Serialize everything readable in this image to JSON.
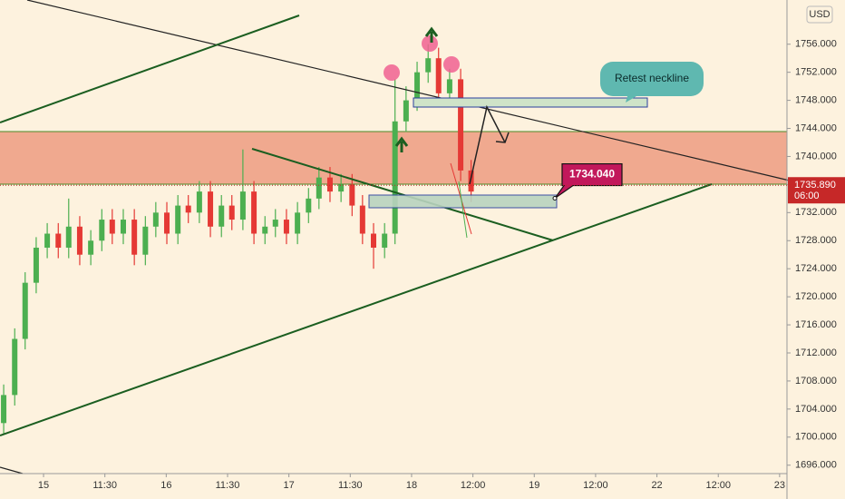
{
  "chart_data": {
    "type": "candlestick",
    "currency": "USD",
    "x": [
      -0.65,
      -0.47,
      -0.3,
      -0.12,
      0.06,
      0.24,
      0.41,
      0.59,
      0.77,
      0.95,
      1.12,
      1.3,
      1.48,
      1.66,
      1.83,
      2.01,
      2.19,
      2.36,
      2.54,
      2.72,
      2.9,
      3.07,
      3.25,
      3.43,
      3.61,
      3.78,
      3.96,
      4.14,
      4.32,
      4.49,
      4.67,
      4.85,
      5.03,
      5.2,
      5.38,
      5.56,
      5.73,
      5.91,
      6.09,
      6.27,
      6.44,
      6.62,
      6.8,
      6.97
    ],
    "open": [
      1702,
      1706,
      1714,
      1722,
      1727,
      1729,
      1727,
      1730,
      1726,
      1728,
      1731,
      1729,
      1731,
      1726,
      1730,
      1732,
      1729,
      1733,
      1732,
      1735,
      1730,
      1733,
      1731,
      1735,
      1729,
      1730,
      1731,
      1729,
      1732,
      1734,
      1737,
      1735,
      1736,
      1733,
      1729,
      1727,
      1729,
      1745,
      1748,
      1752,
      1754,
      1749,
      1751,
      1738
    ],
    "high": [
      1707.5,
      1715.5,
      1723.5,
      1728.5,
      1730.5,
      1730.5,
      1734,
      1731.5,
      1729.5,
      1732.5,
      1732.5,
      1732.5,
      1732.5,
      1731.5,
      1733.5,
      1733.5,
      1734.5,
      1734.5,
      1736.5,
      1736.5,
      1734.5,
      1734.5,
      1741,
      1736.5,
      1731.5,
      1732.5,
      1732.5,
      1733.5,
      1735.5,
      1738.5,
      1738.5,
      1737.5,
      1737.5,
      1734.5,
      1730.5,
      1730.5,
      1751,
      1750,
      1753.5,
      1756,
      1755.5,
      1752.5,
      1752.5,
      1739.5
    ],
    "low": [
      1700.5,
      1704.5,
      1712.5,
      1720.5,
      1725.5,
      1725.5,
      1725.5,
      1724.5,
      1724.5,
      1726.5,
      1727.5,
      1727.5,
      1724.5,
      1724.5,
      1728.5,
      1727.5,
      1727.5,
      1730.5,
      1730.5,
      1728.5,
      1728.5,
      1729.5,
      1729.5,
      1727.5,
      1727.5,
      1728.5,
      1727.5,
      1727.5,
      1730.5,
      1732.5,
      1733.5,
      1733.5,
      1731.5,
      1727.5,
      1724,
      1725.5,
      1727.5,
      1743.5,
      1746.5,
      1750.5,
      1747.5,
      1747.5,
      1736.5,
      1733.5
    ],
    "close": [
      1706,
      1714,
      1722,
      1727,
      1729,
      1727,
      1730,
      1726,
      1728,
      1731,
      1729,
      1731,
      1726,
      1730,
      1732,
      1729,
      1733,
      1732,
      1735,
      1730,
      1733,
      1731,
      1735,
      1729,
      1730,
      1731,
      1729,
      1732,
      1734,
      1737,
      1735,
      1736,
      1733,
      1729,
      1727,
      1729,
      1745,
      1748,
      1752,
      1754,
      1749,
      1751,
      1738,
      1735
    ],
    "up_color": "#4caf50",
    "down_color": "#e53935",
    "xlim": [
      -0.71,
      12.12
    ],
    "ylim": [
      1694.8,
      1762.3
    ],
    "xticks": [
      {
        "value": 0,
        "label": "15"
      },
      {
        "value": 1,
        "label": "11:30"
      },
      {
        "value": 2,
        "label": "16"
      },
      {
        "value": 3,
        "label": "11:30"
      },
      {
        "value": 4,
        "label": "17"
      },
      {
        "value": 5,
        "label": "11:30"
      },
      {
        "value": 6,
        "label": "18"
      },
      {
        "value": 7,
        "label": "12:00"
      },
      {
        "value": 8,
        "label": "19"
      },
      {
        "value": 9,
        "label": "12:00"
      },
      {
        "value": 10,
        "label": "22"
      },
      {
        "value": 11,
        "label": "12:00"
      },
      {
        "value": 12,
        "label": "23"
      }
    ],
    "yticks": [
      {
        "value": 1696,
        "label": "1696.000"
      },
      {
        "value": 1700,
        "label": "1700.000"
      },
      {
        "value": 1704,
        "label": "1704.000"
      },
      {
        "value": 1708,
        "label": "1708.000"
      },
      {
        "value": 1712,
        "label": "1712.000"
      },
      {
        "value": 1716,
        "label": "1716.000"
      },
      {
        "value": 1720,
        "label": "1720.000"
      },
      {
        "value": 1724,
        "label": "1724.000"
      },
      {
        "value": 1728,
        "label": "1728.000"
      },
      {
        "value": 1732,
        "label": "1732.000"
      },
      {
        "value": 1736,
        "label": "1736.000"
      },
      {
        "value": 1740,
        "label": "1740.000"
      },
      {
        "value": 1744,
        "label": "1744.000"
      },
      {
        "value": 1748,
        "label": "1748.000"
      },
      {
        "value": 1752,
        "label": "1752.000"
      },
      {
        "value": 1756,
        "label": "1756.000"
      }
    ],
    "grid": false,
    "current_price": {
      "value": 1735.89,
      "label": "1735.890"
    },
    "countdown": "06:00",
    "annotations": [
      {
        "text": "Retest neckline"
      },
      {
        "value": 1734.04,
        "label": "1734.040"
      }
    ]
  }
}
